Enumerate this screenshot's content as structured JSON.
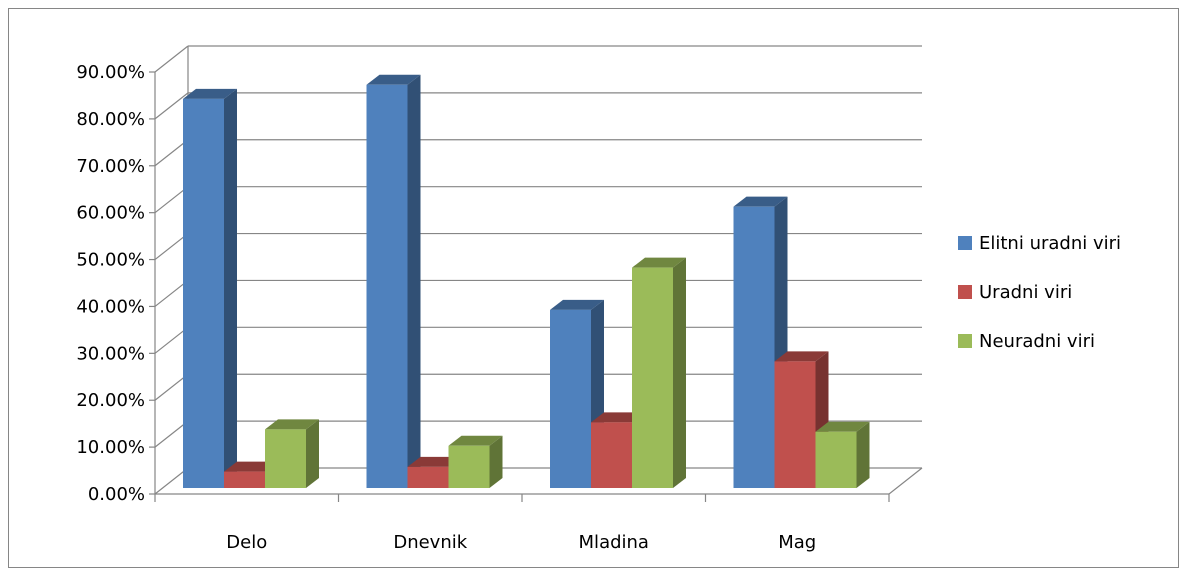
{
  "chart_data": {
    "type": "bar",
    "categories": [
      "Delo",
      "Dnevnik",
      "Mladina",
      "Mag"
    ],
    "series": [
      {
        "name": "Elitni uradni viri",
        "values": [
          83.0,
          86.0,
          38.0,
          60.0
        ],
        "color": "#4F81BD"
      },
      {
        "name": "Uradni viri",
        "values": [
          3.5,
          4.5,
          14.0,
          27.0
        ],
        "color": "#C0504D"
      },
      {
        "name": "Neuradni viri",
        "values": [
          12.5,
          9.0,
          47.0,
          12.0
        ],
        "color": "#9BBB59"
      }
    ],
    "y_ticks": [
      "0.00%",
      "10.00%",
      "20.00%",
      "30.00%",
      "40.00%",
      "50.00%",
      "60.00%",
      "70.00%",
      "80.00%",
      "90.00%"
    ],
    "ylim": [
      0,
      90
    ],
    "y_unit": "percent",
    "title": "",
    "xlabel": "",
    "ylabel": "",
    "grid": true,
    "three_d": true,
    "legend_position": "right"
  }
}
